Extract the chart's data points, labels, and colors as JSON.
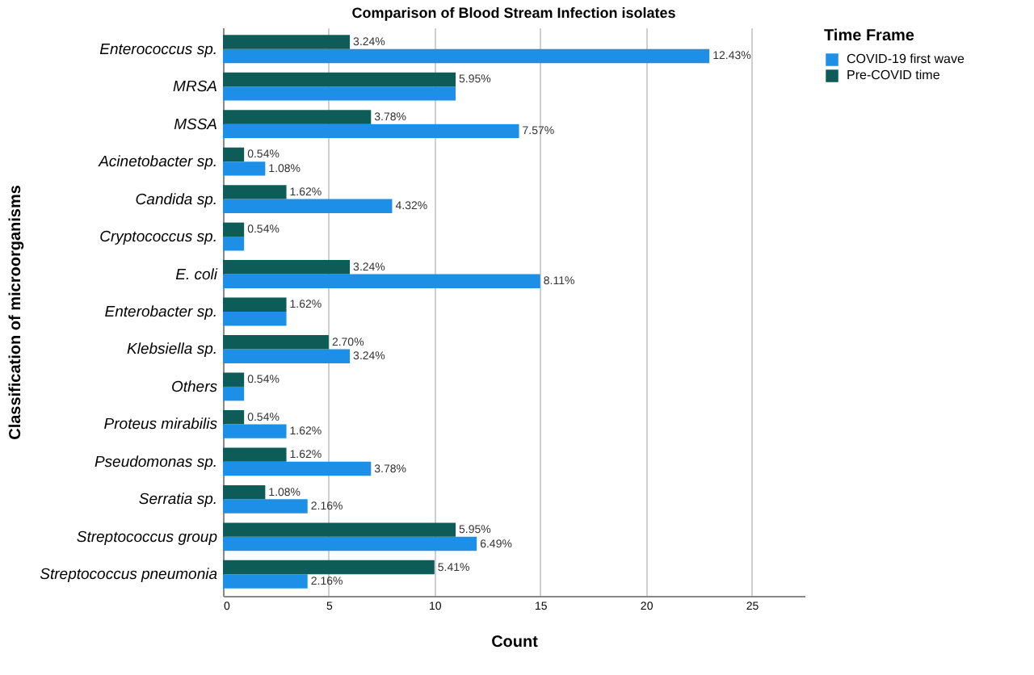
{
  "chart_data": {
    "type": "bar",
    "orientation": "horizontal",
    "title": "Comparison of Blood Stream Infection isolates",
    "xlabel": "Count",
    "ylabel": "Classification of microorganisms",
    "legend_title": "Time Frame",
    "legend": "right",
    "grid": "x",
    "categories": [
      "Enterococcus sp.",
      "MRSA",
      "MSSA",
      "Acinetobacter sp.",
      "Candida sp.",
      "Cryptococcus sp.",
      "E. coli",
      "Enterobacter sp.",
      "Klebsiella sp.",
      "Others",
      "Proteus mirabilis",
      "Pseudomonas sp.",
      "Serratia sp.",
      "Streptococcus group",
      "Streptococcus pneumonia"
    ],
    "xlim": [
      0,
      27.5
    ],
    "xticks": [
      0,
      5,
      10,
      15,
      20,
      25
    ],
    "series": [
      {
        "name": "COVID-19 first wave",
        "color": "#1e8fe6",
        "values": [
          23,
          11,
          14,
          2,
          8,
          1,
          15,
          3,
          6,
          1,
          3,
          7,
          4,
          12,
          4
        ]
      },
      {
        "name": "Pre-COVID time",
        "color": "#0d5c57",
        "values": [
          6,
          11,
          7,
          1,
          3,
          1,
          6,
          3,
          5,
          1,
          1,
          3,
          2,
          11,
          10
        ]
      }
    ],
    "annotations": [
      {
        "text": "3.24%",
        "x": 6,
        "y": "Enterococcus sp."
      },
      {
        "text": "12.43%",
        "x": 23,
        "y": "Enterococcus sp."
      },
      {
        "text": "5.95%",
        "x": 11,
        "y": "MRSA"
      },
      {
        "text": "3.78%",
        "x": 7,
        "y": "MSSA"
      },
      {
        "text": "7.57%",
        "x": 14,
        "y": "MSSA"
      },
      {
        "text": "0.54%",
        "x": 1,
        "y": "Acinetobacter sp."
      },
      {
        "text": "1.08%",
        "x": 2,
        "y": "Acinetobacter sp."
      },
      {
        "text": "1.62%",
        "x": 3,
        "y": "Candida sp."
      },
      {
        "text": "4.32%",
        "x": 8,
        "y": "Candida sp."
      },
      {
        "text": "0.54%",
        "x": 1,
        "y": "Cryptococcus sp."
      },
      {
        "text": "3.24%",
        "x": 6,
        "y": "E. coli"
      },
      {
        "text": "8.11%",
        "x": 15,
        "y": "E. coli"
      },
      {
        "text": "1.62%",
        "x": 3,
        "y": "Enterobacter sp."
      },
      {
        "text": "2.70%",
        "x": 5,
        "y": "Klebsiella sp."
      },
      {
        "text": "3.24%",
        "x": 6,
        "y": "Klebsiella sp."
      },
      {
        "text": "0.54%",
        "x": 1,
        "y": "Others"
      },
      {
        "text": "0.54%",
        "x": 1,
        "y": "Proteus mirabilis"
      },
      {
        "text": "1.62%",
        "x": 3,
        "y": "Proteus mirabilis"
      },
      {
        "text": "1.62%",
        "x": 3,
        "y": "Pseudomonas sp."
      },
      {
        "text": "3.78%",
        "x": 7,
        "y": "Pseudomonas sp."
      },
      {
        "text": "1.08%",
        "x": 2,
        "y": "Serratia sp."
      },
      {
        "text": "2.16%",
        "x": 4,
        "y": "Serratia sp."
      },
      {
        "text": "5.95%",
        "x": 11,
        "y": "Streptococcus group"
      },
      {
        "text": "6.49%",
        "x": 12,
        "y": "Streptococcus group"
      },
      {
        "text": "5.41%",
        "x": 10,
        "y": "Streptococcus pneumonia"
      },
      {
        "text": "2.16%",
        "x": 4,
        "y": "Streptococcus pneumonia"
      }
    ]
  }
}
